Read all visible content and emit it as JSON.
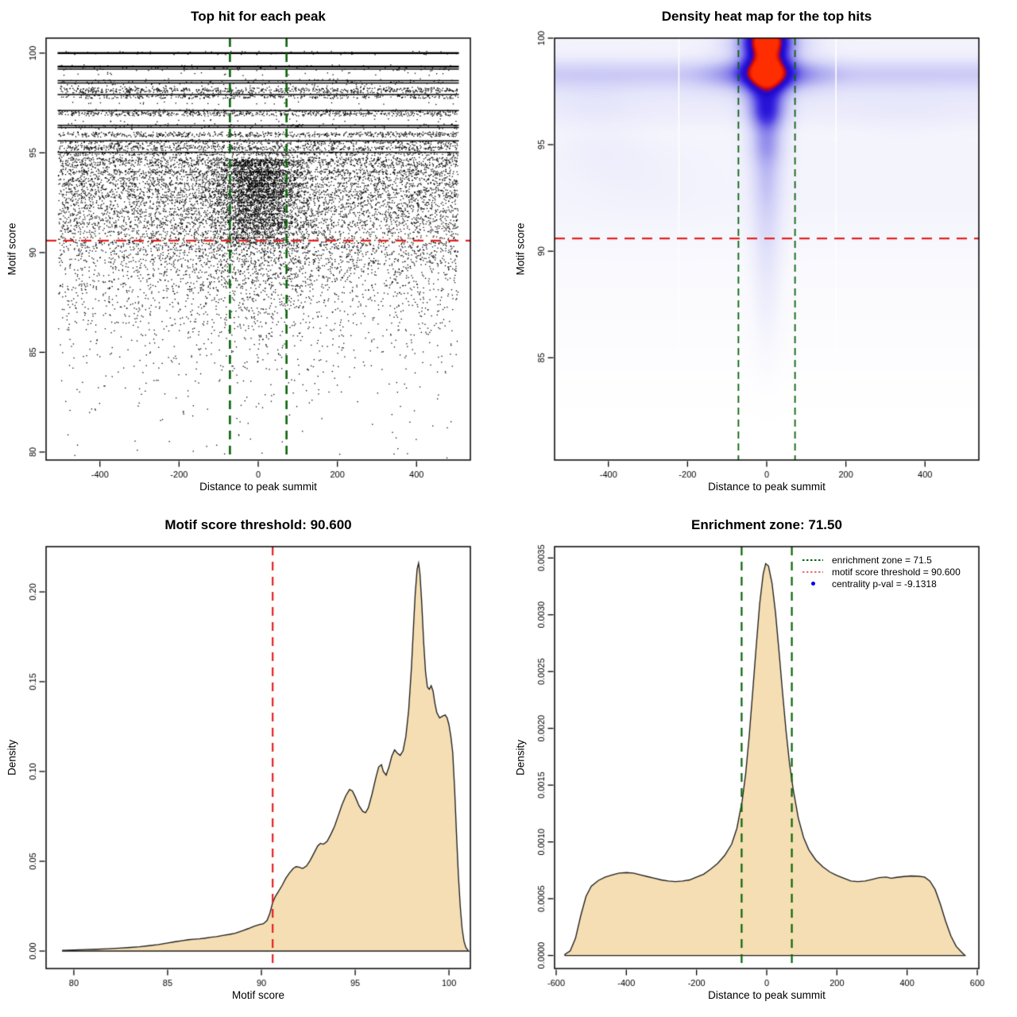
{
  "thresholds": {
    "motif_score_threshold": 90.6,
    "motif_score_threshold_label": "90.600",
    "enrichment_zone": 71.5,
    "enrichment_zone_label": "71.50",
    "centrality_pval": "-9.1318"
  },
  "colors": {
    "red_line": "#e42020",
    "green_line": "#0a640a",
    "wheat_fill": "#f5deb3",
    "curve_stroke": "#1e1e1e",
    "point_black": "#000000",
    "legend_green": "#0a640a",
    "legend_salmon": "#ee7070",
    "legend_blue": "#0000f0"
  },
  "chart_data": [
    {
      "kind": "scatter",
      "type": "scatter",
      "title": "Top hit for each peak",
      "xlabel": "Distance to peak summit",
      "ylabel": "Motif score",
      "box": {
        "l": 58,
        "t": 48,
        "r": 592,
        "b": 579
      },
      "xlim": [
        -536,
        536
      ],
      "ylim": [
        79.6,
        100.75
      ],
      "xticks": {
        "values": [
          -400,
          -200,
          0,
          200,
          400
        ],
        "labels": [
          "-400",
          "-200",
          "0",
          "200",
          "400"
        ]
      },
      "yticks": {
        "values": [
          80,
          85,
          90,
          95,
          100
        ],
        "labels": [
          "80",
          "85",
          "90",
          "95",
          "100"
        ]
      },
      "seed": 1234,
      "bands": [
        {
          "y": 100.0,
          "s": "line2"
        },
        {
          "y": 99.32,
          "s": "line2"
        },
        {
          "y": 99.2,
          "s": "line"
        },
        {
          "y": 98.95,
          "s": "dots"
        },
        {
          "y": 98.62,
          "s": "line"
        },
        {
          "y": 98.5,
          "s": "line"
        },
        {
          "y": 98.28,
          "s": "sparse"
        },
        {
          "y": 98.17,
          "s": "dense"
        },
        {
          "y": 98.07,
          "s": "dense"
        },
        {
          "y": 97.92,
          "s": "line"
        },
        {
          "y": 97.8,
          "s": "dense"
        },
        {
          "y": 97.5,
          "s": "dots"
        },
        {
          "y": 97.12,
          "s": "line"
        },
        {
          "y": 97.02,
          "s": "dense"
        },
        {
          "y": 96.92,
          "s": "dense"
        },
        {
          "y": 96.62,
          "s": "dots"
        },
        {
          "y": 96.38,
          "s": "line"
        },
        {
          "y": 96.27,
          "s": "line"
        },
        {
          "y": 95.97,
          "s": "dense"
        },
        {
          "y": 95.87,
          "s": "dense"
        },
        {
          "y": 95.6,
          "s": "line"
        },
        {
          "y": 95.5,
          "s": "dense"
        },
        {
          "y": 95.3,
          "s": "dense"
        },
        {
          "y": 95.2,
          "s": "dense"
        },
        {
          "y": 95.03,
          "s": "line"
        },
        {
          "y": 94.93,
          "s": "dense"
        },
        {
          "y": 94.7,
          "s": "dense"
        },
        {
          "y": 94.58,
          "s": "dense"
        },
        {
          "y": 94.42,
          "s": "dense"
        },
        {
          "y": 94.3,
          "s": "med"
        },
        {
          "y": 94.1,
          "s": "dense"
        },
        {
          "y": 93.98,
          "s": "dense"
        },
        {
          "y": 93.83,
          "s": "med"
        },
        {
          "y": 93.68,
          "s": "dense"
        },
        {
          "y": 93.53,
          "s": "med"
        },
        {
          "y": 93.4,
          "s": "dense"
        },
        {
          "y": 93.26,
          "s": "med"
        },
        {
          "y": 93.1,
          "s": "dense"
        },
        {
          "y": 92.96,
          "s": "med"
        },
        {
          "y": 92.83,
          "s": "dense"
        },
        {
          "y": 92.7,
          "s": "med"
        },
        {
          "y": 92.56,
          "s": "med"
        },
        {
          "y": 92.43,
          "s": "med"
        },
        {
          "y": 92.28,
          "s": "med"
        },
        {
          "y": 92.13,
          "s": "med"
        },
        {
          "y": 92.0,
          "s": "med"
        },
        {
          "y": 91.86,
          "s": "med"
        },
        {
          "y": 91.7,
          "s": "med"
        },
        {
          "y": 91.56,
          "s": "med"
        },
        {
          "y": 91.43,
          "s": "med"
        },
        {
          "y": 91.28,
          "s": "med"
        },
        {
          "y": 91.13,
          "s": "msparse"
        },
        {
          "y": 90.98,
          "s": "med"
        },
        {
          "y": 90.83,
          "s": "sparse"
        },
        {
          "y": 90.68,
          "s": "med"
        },
        {
          "y": 90.53,
          "s": "sparse"
        }
      ],
      "cloud": {
        "n": 3000,
        "decay": 2.3,
        "start": 90.55,
        "center_frac": 0.22,
        "center_sd": 120,
        "upper_n": 300
      },
      "vlines": [
        {
          "x": -71.5,
          "color": "#0a640a",
          "w": 2.6,
          "dash": [
            11,
            8
          ]
        },
        {
          "x": 71.5,
          "color": "#0a640a",
          "w": 2.6,
          "dash": [
            11,
            8
          ]
        }
      ],
      "hlines": [
        {
          "y": 90.6,
          "color": "#e42020",
          "w": 2.4,
          "dash": [
            13,
            9
          ]
        }
      ]
    },
    {
      "kind": "heatmap",
      "type": "heatmap",
      "title": "Density heat map for the top hits",
      "xlabel": "Distance to peak summit",
      "ylabel": "Motif score",
      "box": {
        "l": 58,
        "t": 48,
        "r": 592,
        "b": 579
      },
      "xlim": [
        -536,
        536
      ],
      "ylim": [
        80.2,
        100.0
      ],
      "xticks": {
        "values": [
          -400,
          -200,
          0,
          200,
          400
        ],
        "labels": [
          "-400",
          "-200",
          "0",
          "200",
          "400"
        ]
      },
      "yticks": {
        "values": [
          85,
          90,
          95,
          100
        ],
        "labels": [
          "85",
          "90",
          "95",
          "100"
        ]
      },
      "scale": 1.75,
      "blobs": [
        [
          0,
          98.32,
          10000,
          0.55,
          0.4
        ],
        [
          0,
          99.9,
          10000,
          0.5,
          0.1
        ],
        [
          0,
          97.15,
          10000,
          0.55,
          0.13
        ],
        [
          0,
          96.3,
          10000,
          0.5,
          0.1
        ],
        [
          0,
          95.05,
          10000,
          0.65,
          0.07
        ],
        [
          0,
          93.9,
          10000,
          0.7,
          0.055
        ],
        [
          0,
          92.6,
          10000,
          0.9,
          0.06
        ],
        [
          0,
          91.0,
          10000,
          1.3,
          0.05
        ],
        [
          0,
          88.5,
          10000,
          2.2,
          0.03
        ],
        [
          0,
          85.5,
          10000,
          2.0,
          0.01
        ],
        [
          -420,
          94.7,
          70,
          1.0,
          0.05
        ],
        [
          -430,
          97.1,
          60,
          0.8,
          0.04
        ],
        [
          -300,
          93.5,
          90,
          1.2,
          0.03
        ],
        [
          350,
          96.3,
          100,
          0.8,
          0.03
        ],
        [
          0,
          98.35,
          45,
          0.58,
          1.3
        ],
        [
          0,
          99.6,
          40,
          0.7,
          1.15
        ],
        [
          0,
          100.3,
          40,
          0.7,
          1.0
        ],
        [
          0,
          97.4,
          36,
          0.6,
          0.55
        ],
        [
          0,
          96.45,
          32,
          0.6,
          0.75
        ],
        [
          0,
          95.1,
          30,
          0.75,
          0.45
        ],
        [
          0,
          93.6,
          28,
          1.1,
          0.25
        ],
        [
          0,
          91.8,
          26,
          1.6,
          0.18
        ],
        [
          0,
          89.3,
          25,
          1.8,
          0.1
        ],
        [
          0,
          86.8,
          24,
          1.8,
          0.05
        ],
        [
          -95,
          98.3,
          55,
          0.55,
          0.22
        ],
        [
          95,
          98.3,
          55,
          0.55,
          0.22
        ],
        [
          -75,
          99.8,
          45,
          0.5,
          0.15
        ],
        [
          75,
          99.8,
          45,
          0.5,
          0.15
        ]
      ],
      "colormap": [
        [
          0,
          "#ffffff"
        ],
        [
          0.05,
          "#f5f5fd"
        ],
        [
          0.12,
          "#e7e7fb"
        ],
        [
          0.22,
          "#d2d1f7"
        ],
        [
          0.34,
          "#aeabf0"
        ],
        [
          0.46,
          "#837be9"
        ],
        [
          0.58,
          "#4c3ce2"
        ],
        [
          0.68,
          "#2a16da"
        ],
        [
          0.77,
          "#1e08c8"
        ],
        [
          0.83,
          "#5206b0"
        ],
        [
          0.88,
          "#c40404"
        ],
        [
          0.94,
          "#ee1c00"
        ],
        [
          1,
          "#ff2e00"
        ]
      ],
      "white_lines": [
        -222,
        175
      ],
      "vlines": [
        {
          "x": -71.5,
          "color": "#0a640a",
          "w": 1.8,
          "dash": [
            9,
            6
          ]
        },
        {
          "x": 71.5,
          "color": "#0a640a",
          "w": 1.8,
          "dash": [
            9,
            6
          ]
        }
      ],
      "hlines": [
        {
          "y": 90.6,
          "color": "#e42020",
          "w": 2.2,
          "dash": [
            13,
            9
          ]
        }
      ]
    },
    {
      "kind": "density",
      "type": "area",
      "title": "Motif score threshold: 90.600",
      "xlabel": "Motif score",
      "ylabel": "Density",
      "box": {
        "l": 58,
        "t": 48,
        "r": 592,
        "b": 579
      },
      "xlim": [
        78.52,
        101.14
      ],
      "ylim": [
        -0.00973,
        0.2252
      ],
      "xticks": {
        "values": [
          80,
          85,
          90,
          95,
          100
        ],
        "labels": [
          "80",
          "85",
          "90",
          "95",
          "100"
        ]
      },
      "yticks": {
        "values": [
          0,
          0.05,
          0.1,
          0.15,
          0.2
        ],
        "labels": [
          "0.00",
          "0.05",
          "0.10",
          "0.15",
          "0.20"
        ]
      },
      "fill": "#f5deb3",
      "curve_x": [
        79.4,
        80,
        80.6,
        81.2,
        81.8,
        82.4,
        83,
        83.5,
        84,
        84.5,
        85,
        85.4,
        85.8,
        86.1,
        86.4,
        86.7,
        87,
        87.3,
        87.6,
        88,
        88.3,
        88.6,
        89,
        89.3,
        89.6,
        89.9,
        90.1,
        90.3,
        90.45,
        90.6,
        90.75,
        90.9,
        91.1,
        91.3,
        91.5,
        91.7,
        91.85,
        92,
        92.2,
        92.4,
        92.6,
        92.8,
        93,
        93.15,
        93.3,
        93.5,
        93.7,
        93.9,
        94.1,
        94.3,
        94.5,
        94.7,
        94.85,
        95,
        95.2,
        95.4,
        95.55,
        95.7,
        95.9,
        96.1,
        96.25,
        96.4,
        96.5,
        96.65,
        96.8,
        96.95,
        97.1,
        97.25,
        97.4,
        97.55,
        97.7,
        97.85,
        98,
        98.1,
        98.2,
        98.3,
        98.38,
        98.45,
        98.55,
        98.65,
        98.75,
        98.85,
        98.95,
        99.05,
        99.15,
        99.25,
        99.35,
        99.5,
        99.65,
        99.8,
        99.9,
        100,
        100.1,
        100.2,
        100.3,
        100.4,
        100.5,
        100.6,
        100.7,
        100.8,
        100.9,
        101,
        101.05
      ],
      "curve_y": [
        0.0004,
        0.0006,
        0.0008,
        0.001,
        0.0013,
        0.0016,
        0.002,
        0.0024,
        0.003,
        0.0036,
        0.0045,
        0.0052,
        0.0058,
        0.0063,
        0.0066,
        0.0068,
        0.0072,
        0.0077,
        0.008,
        0.0088,
        0.0093,
        0.0099,
        0.0113,
        0.0125,
        0.0138,
        0.0148,
        0.0152,
        0.017,
        0.021,
        0.027,
        0.0305,
        0.033,
        0.0365,
        0.0405,
        0.0435,
        0.046,
        0.047,
        0.0467,
        0.046,
        0.0473,
        0.0505,
        0.0545,
        0.0585,
        0.06,
        0.0595,
        0.061,
        0.065,
        0.0695,
        0.0755,
        0.0815,
        0.0865,
        0.09,
        0.0892,
        0.086,
        0.081,
        0.0778,
        0.077,
        0.0798,
        0.0875,
        0.0965,
        0.1025,
        0.1038,
        0.1,
        0.098,
        0.1025,
        0.1085,
        0.112,
        0.1102,
        0.109,
        0.1115,
        0.1195,
        0.134,
        0.158,
        0.179,
        0.199,
        0.2125,
        0.216,
        0.2105,
        0.1935,
        0.172,
        0.1555,
        0.147,
        0.1458,
        0.1478,
        0.1448,
        0.138,
        0.1328,
        0.1298,
        0.1308,
        0.1315,
        0.1298,
        0.126,
        0.1195,
        0.1105,
        0.0905,
        0.0655,
        0.0425,
        0.025,
        0.0125,
        0.0055,
        0.002,
        0.0006,
        0
      ],
      "vlines": [
        {
          "x": 90.6,
          "color": "#e42020",
          "w": 2.2,
          "dash": [
            11,
            8
          ]
        }
      ],
      "hlines": []
    },
    {
      "kind": "density",
      "type": "area",
      "title": "Enrichment zone: 71.50",
      "xlabel": "Distance to peak summit",
      "ylabel": "Density",
      "box": {
        "l": 58,
        "t": 48,
        "r": 592,
        "b": 579
      },
      "xlim": [
        -604.5,
        604.5
      ],
      "ylim": [
        -0.000115,
        0.0036
      ],
      "xticks": {
        "values": [
          -600,
          -400,
          -200,
          0,
          200,
          400,
          600
        ],
        "labels": [
          "-600",
          "-400",
          "-200",
          "0",
          "200",
          "400",
          "600"
        ]
      },
      "yticks": {
        "values": [
          0,
          0.0005,
          0.001,
          0.0015,
          0.002,
          0.0025,
          0.003,
          0.0035
        ],
        "labels": [
          "0.0000",
          "0.0005",
          "0.0010",
          "0.0015",
          "0.0020",
          "0.0025",
          "0.0030",
          "0.0035"
        ]
      },
      "fill": "#f5deb3",
      "curve_x": [
        -575,
        -560,
        -545,
        -530,
        -515,
        -500,
        -480,
        -460,
        -440,
        -420,
        -400,
        -380,
        -360,
        -340,
        -320,
        -300,
        -280,
        -260,
        -240,
        -220,
        -200,
        -180,
        -160,
        -140,
        -120,
        -100,
        -85,
        -70,
        -60,
        -50,
        -40,
        -30,
        -20,
        -10,
        -3,
        5,
        15,
        25,
        35,
        45,
        55,
        65,
        75,
        90,
        105,
        120,
        140,
        160,
        180,
        200,
        220,
        240,
        260,
        280,
        300,
        320,
        340,
        355,
        370,
        390,
        410,
        430,
        450,
        465,
        480,
        495,
        510,
        525,
        540,
        555,
        565
      ],
      "curve_y": [
        1e-05,
        4e-05,
        0.00015,
        0.00035,
        0.00052,
        0.00061,
        0.00066,
        0.00069,
        0.00071,
        0.000725,
        0.00073,
        0.000725,
        0.00071,
        0.000695,
        0.00068,
        0.000665,
        0.000655,
        0.00065,
        0.000655,
        0.000665,
        0.00069,
        0.000715,
        0.00076,
        0.00081,
        0.00088,
        0.00098,
        0.00112,
        0.00136,
        0.0016,
        0.00193,
        0.00232,
        0.00272,
        0.0031,
        0.00336,
        0.00345,
        0.00343,
        0.00328,
        0.00302,
        0.00268,
        0.00232,
        0.00198,
        0.00169,
        0.00147,
        0.00121,
        0.00104,
        0.00093,
        0.00084,
        0.00078,
        0.000735,
        0.000705,
        0.00068,
        0.000655,
        0.00065,
        0.000655,
        0.00067,
        0.000685,
        0.00069,
        0.00068,
        0.000688,
        0.000695,
        0.0007,
        0.000698,
        0.00069,
        0.000655,
        0.00058,
        0.00045,
        0.0003,
        0.00017,
        8e-05,
        3e-05,
        0
      ],
      "vlines": [
        {
          "x": -71.5,
          "color": "#0a640a",
          "w": 2.2,
          "dash": [
            11,
            8
          ]
        },
        {
          "x": 71.5,
          "color": "#0a640a",
          "w": 2.2,
          "dash": [
            11,
            8
          ]
        }
      ],
      "hlines": [],
      "legend": {
        "items": [
          {
            "label": "enrichment zone = 71.5",
            "color": "#0a640a",
            "swatch": "dots"
          },
          {
            "label": "motif score threshold = 90.600",
            "color": "#ee7070",
            "swatch": "dots"
          },
          {
            "label": "centrality p-val = -9.1318",
            "color": "#0000f0",
            "swatch": "point"
          }
        ]
      }
    }
  ]
}
